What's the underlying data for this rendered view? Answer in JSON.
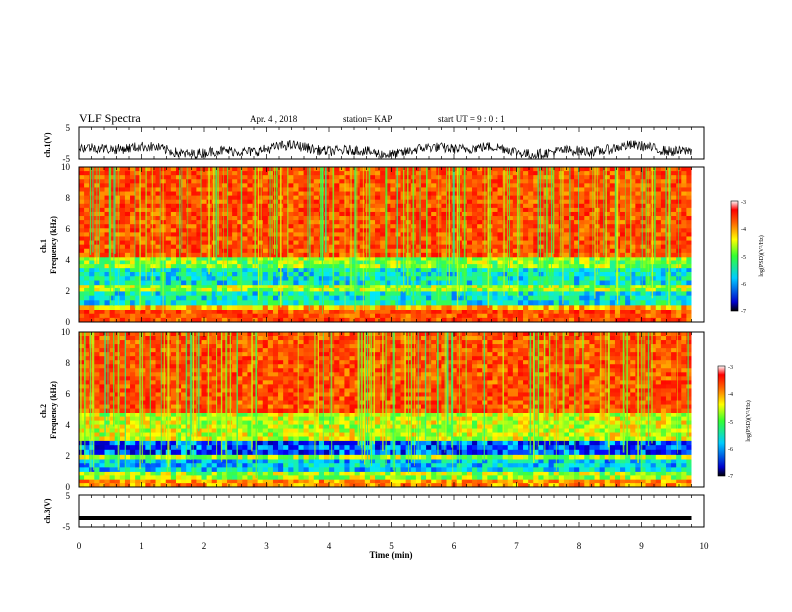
{
  "header": {
    "title": "VLF Spectra",
    "date": "Apr. 4 , 2018",
    "station": "station= KAP",
    "start_ut": "start UT =  9 : 0 : 1"
  },
  "chart_data": [
    {
      "type": "line",
      "panel": "ch1-waveform",
      "ylabel": "ch.1(V)",
      "yticks": [
        "5",
        "-5"
      ],
      "ylim": [
        -5,
        5
      ],
      "x_range_min": [
        0,
        9.8
      ],
      "description_of_values": "noisy waveform with amplitude roughly between -5 and 1 V"
    },
    {
      "type": "heatmap",
      "panel": "ch1-spectrogram",
      "ylabel": "ch.1\nFrequency (kHz)",
      "yticks": [
        "0",
        "2",
        "4",
        "6",
        "8",
        "10"
      ],
      "ylim": [
        0,
        10
      ],
      "x_range_min": [
        0,
        9.8
      ],
      "bands_khz": [
        {
          "from": 0,
          "to": 0.8,
          "level": -3.6
        },
        {
          "from": 0.8,
          "to": 1.1,
          "level": -4.2
        },
        {
          "from": 1.1,
          "to": 2.0,
          "level": -5.6
        },
        {
          "from": 2.0,
          "to": 2.4,
          "level": -4.8
        },
        {
          "from": 2.4,
          "to": 3.5,
          "level": -5.6
        },
        {
          "from": 3.5,
          "to": 4.2,
          "level": -4.9
        },
        {
          "from": 4.2,
          "to": 10,
          "level": -3.6
        }
      ],
      "colorbar": {
        "label": "log(PSD)(V²/Hz)",
        "ticks": [
          "-3",
          "-4",
          "-5",
          "-6",
          "-7"
        ],
        "range": [
          -7,
          -3
        ]
      }
    },
    {
      "type": "heatmap",
      "panel": "ch2-spectrogram",
      "ylabel": "ch.2\nFrequency (kHz)",
      "yticks": [
        "0",
        "2",
        "4",
        "6",
        "8",
        "10"
      ],
      "ylim": [
        0,
        10
      ],
      "x_range_min": [
        0,
        9.8
      ],
      "bands_khz": [
        {
          "from": 0,
          "to": 0.5,
          "level": -4.0
        },
        {
          "from": 0.5,
          "to": 1.0,
          "level": -4.8
        },
        {
          "from": 1.0,
          "to": 1.8,
          "level": -5.8
        },
        {
          "from": 1.8,
          "to": 2.1,
          "level": -4.8
        },
        {
          "from": 2.1,
          "to": 3.0,
          "level": -6.3
        },
        {
          "from": 3.0,
          "to": 4.8,
          "level": -4.6
        },
        {
          "from": 4.8,
          "to": 10,
          "level": -3.6
        }
      ],
      "colorbar": {
        "label": "log(PSD)(V²/Hz)",
        "ticks": [
          "-3",
          "-4",
          "-5",
          "-6",
          "-7"
        ],
        "range": [
          -7,
          -3
        ]
      }
    },
    {
      "type": "line",
      "panel": "ch3-waveform",
      "ylabel": "ch.3(V)",
      "yticks": [
        "5",
        "-5"
      ],
      "ylim": [
        -5,
        5
      ],
      "x_range_min": [
        0,
        9.8
      ],
      "values_constant_v": -2.2
    }
  ],
  "xaxis": {
    "label": "Time (min)",
    "ticks": [
      "0",
      "1",
      "2",
      "3",
      "4",
      "5",
      "6",
      "7",
      "8",
      "9",
      "10"
    ],
    "xlim": [
      0,
      10
    ]
  },
  "colors": {
    "jet": [
      "#00007f",
      "#0000ff",
      "#00ffff",
      "#33ff33",
      "#ffff00",
      "#ff6600",
      "#ff0000"
    ]
  }
}
